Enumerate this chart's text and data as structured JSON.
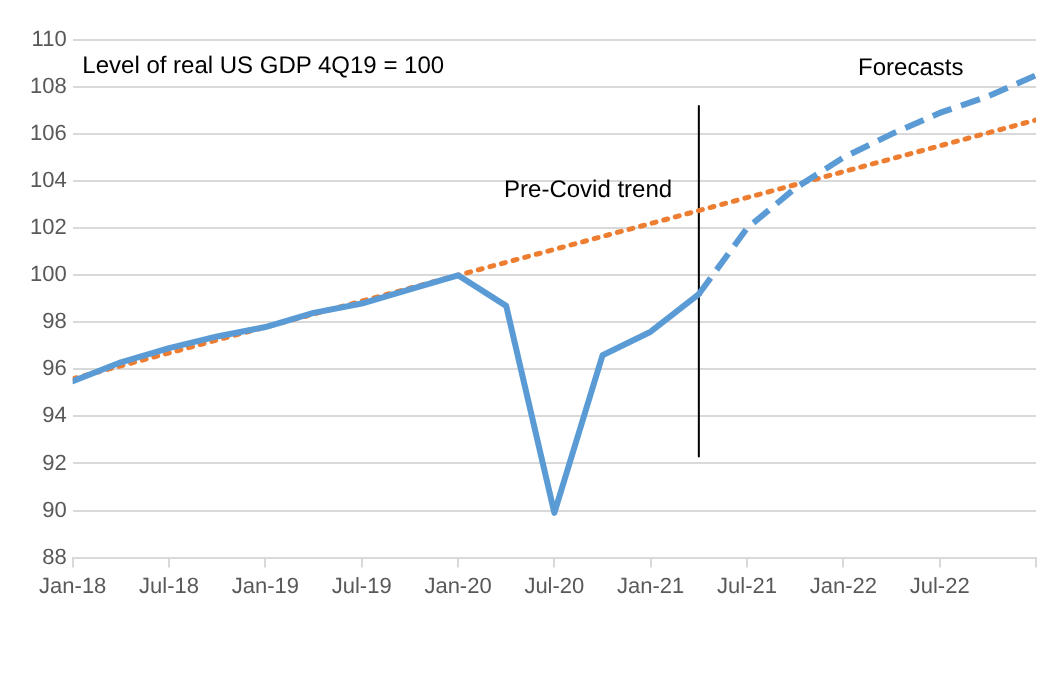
{
  "chart_data": {
    "type": "line",
    "xlim": [
      "2018-01",
      "2023-01"
    ],
    "xticks": [
      {
        "value": "2018-01",
        "label": "Jan-18"
      },
      {
        "value": "2018-07",
        "label": "Jul-18"
      },
      {
        "value": "2019-01",
        "label": "Jan-19"
      },
      {
        "value": "2019-07",
        "label": "Jul-19"
      },
      {
        "value": "2020-01",
        "label": "Jan-20"
      },
      {
        "value": "2020-07",
        "label": "Jul-20"
      },
      {
        "value": "2021-01",
        "label": "Jan-21"
      },
      {
        "value": "2021-07",
        "label": "Jul-21"
      },
      {
        "value": "2022-01",
        "label": "Jan-22"
      },
      {
        "value": "2022-07",
        "label": "Jul-22"
      },
      {
        "value": "2023-01",
        "label": null
      }
    ],
    "ylim": [
      88,
      110
    ],
    "yticks": [
      88,
      90,
      92,
      94,
      96,
      98,
      100,
      102,
      104,
      106,
      108,
      110
    ],
    "grid": "y",
    "legend": false,
    "marker": "none",
    "series": [
      {
        "color": "#5b9bd5",
        "line_style": "solid",
        "x": [
          "2018-01",
          "2018-04",
          "2018-07",
          "2018-10",
          "2019-01",
          "2019-04",
          "2019-07",
          "2019-10",
          "2020-01",
          "2020-04",
          "2020-07",
          "2020-10",
          "2021-01",
          "2021-04"
        ],
        "values": [
          95.5,
          96.3,
          96.9,
          97.4,
          97.8,
          98.4,
          98.8,
          99.4,
          100.0,
          98.7,
          89.9,
          96.6,
          97.6,
          99.2
        ]
      },
      {
        "color": "#5b9bd5",
        "line_style": "dashed",
        "x": [
          "2021-04",
          "2021-07",
          "2021-10",
          "2022-01",
          "2022-04",
          "2022-07",
          "2022-10",
          "2023-01"
        ],
        "values": [
          99.2,
          102.0,
          103.7,
          105.0,
          106.0,
          106.9,
          107.6,
          108.5
        ]
      },
      {
        "color": "#ed7d31",
        "line_style": "dotted",
        "x": [
          "2018-01",
          "2023-01"
        ],
        "values": [
          95.6,
          106.6
        ]
      },
      {
        "color": "#000000",
        "line_style": "solid",
        "x": [
          "2021-04",
          "2021-04"
        ],
        "values": [
          107.2,
          92.3
        ]
      }
    ],
    "annotations": [
      "Level of real US GDP 4Q19 = 100",
      "Pre-Covid trend",
      "Forecasts"
    ]
  }
}
